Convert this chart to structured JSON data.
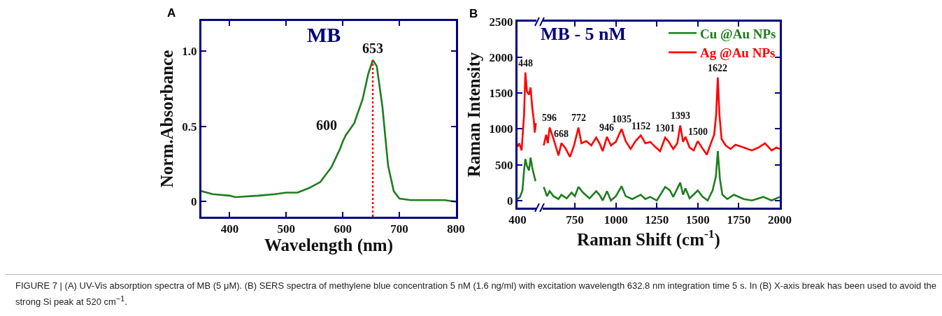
{
  "chart_data": [
    {
      "type": "line",
      "title": "MB",
      "xlabel": "Wavelength (nm)",
      "ylabel": "Norm.Absorbance",
      "xlim": [
        350,
        800
      ],
      "xticks": [
        400,
        500,
        600,
        700,
        800
      ],
      "ylim": [
        -0.1,
        1.2
      ],
      "yticks": [
        0.0,
        {
          "value": 0.5,
          "label": "0.5"
        },
        {
          "value": 1.0,
          "label": "1.0"
        }
      ],
      "grid": false,
      "legend": false,
      "marker": "none",
      "line_style": "solid",
      "x": [
        350,
        370,
        400,
        410,
        450,
        480,
        500,
        520,
        540,
        560,
        580,
        595,
        600,
        605,
        620,
        635,
        645,
        653,
        660,
        670,
        680,
        690,
        700,
        720,
        750,
        780,
        800
      ],
      "series": [
        {
          "color": "#1e7d1e",
          "values": [
            0.07,
            0.05,
            0.04,
            0.03,
            0.04,
            0.05,
            0.06,
            0.06,
            0.09,
            0.13,
            0.23,
            0.35,
            0.4,
            0.44,
            0.52,
            0.68,
            0.85,
            0.94,
            0.9,
            0.63,
            0.24,
            0.07,
            0.02,
            0.01,
            0.01,
            0.01,
            0.0
          ]
        }
      ],
      "ref_lines": [
        {
          "axis": "x",
          "value": 653,
          "color": "#ff0000",
          "line_style": "dotted"
        }
      ],
      "annotations": [
        "A",
        {
          "text": "653",
          "x": 653,
          "y": 0.94
        },
        {
          "text": "600",
          "x": 600,
          "y": 0.4
        },
        "FIGURE 7 | (A) UV-Vis absorption spectra of MB (5 μM). (B) SERS spectra of methylene blue concentration 5 nM (1.6 ng/ml) with excitation wavelength 632.8 nm integration time 5 s. In (B) X-axis break has been used to avoid the strong Si peak at 520 cm$^{−1}$."
      ]
    },
    {
      "type": "line",
      "title": "MB - 5 nM",
      "xlabel": "Raman Shift (cm$^{-1}$)",
      "ylabel": "Raman Intensity",
      "xlim": [
        400,
        2000
      ],
      "xticks": [
        400,
        750,
        1000,
        1250,
        1500,
        1750,
        2000
      ],
      "ylim": [
        -100,
        2500
      ],
      "yticks": [
        0,
        500,
        1000,
        1500,
        2000,
        2500
      ],
      "grid": false,
      "legend": "top right",
      "marker": "none",
      "line_style": "solid",
      "series": [
        {
          "name": "Cu @Au NPs",
          "color": "#1e7d1e",
          "x": [
            400,
            415,
            430,
            440,
            448,
            458,
            470,
            480,
            490,
            500,
            510,
            535,
            560,
            580,
            596,
            620,
            650,
            668,
            700,
            730,
            750,
            772,
            800,
            840,
            880,
            900,
            920,
            946,
            970,
            1000,
            1035,
            1060,
            1100,
            1152,
            1180,
            1210,
            1250,
            1301,
            1330,
            1350,
            1393,
            1410,
            1425,
            1450,
            1500,
            1530,
            1560,
            1590,
            1610,
            1622,
            1635,
            1650,
            1680,
            1720,
            1780,
            1830,
            1900,
            1950,
            2000
          ],
          "values": [
            20,
            50,
            140,
            420,
            580,
            480,
            420,
            600,
            460,
            360,
            270,
            null,
            190,
            60,
            130,
            60,
            20,
            80,
            30,
            110,
            60,
            190,
            110,
            30,
            130,
            80,
            0,
            130,
            0,
            60,
            200,
            60,
            20,
            80,
            20,
            50,
            0,
            190,
            140,
            50,
            250,
            80,
            170,
            30,
            140,
            50,
            0,
            140,
            330,
            690,
            300,
            80,
            20,
            80,
            20,
            0,
            50,
            0,
            50
          ]
        },
        {
          "name": "Ag @Au NPs",
          "color": "#ff0000",
          "x": [
            400,
            410,
            425,
            440,
            448,
            458,
            470,
            480,
            490,
            500,
            505,
            512,
            535,
            560,
            575,
            585,
            596,
            620,
            650,
            668,
            690,
            720,
            745,
            772,
            790,
            820,
            850,
            880,
            900,
            920,
            946,
            970,
            1000,
            1035,
            1060,
            1090,
            1120,
            1152,
            1180,
            1210,
            1240,
            1270,
            1301,
            1320,
            1350,
            1375,
            1393,
            1410,
            1425,
            1450,
            1475,
            1500,
            1525,
            1555,
            1580,
            1600,
            1612,
            1622,
            1632,
            1645,
            1670,
            1700,
            1730,
            1780,
            1830,
            1870,
            1910,
            1950,
            1980,
            2000
          ],
          "values": [
            750,
            800,
            700,
            1200,
            1790,
            1520,
            1480,
            1580,
            1300,
            1110,
            950,
            1080,
            null,
            770,
            920,
            800,
            1020,
            860,
            630,
            800,
            740,
            610,
            770,
            1020,
            800,
            830,
            770,
            880,
            800,
            690,
            890,
            770,
            820,
            1000,
            830,
            720,
            830,
            910,
            800,
            820,
            750,
            690,
            880,
            830,
            720,
            800,
            1050,
            820,
            890,
            740,
            700,
            830,
            740,
            640,
            800,
            920,
            1200,
            1720,
            1200,
            860,
            770,
            720,
            780,
            740,
            700,
            740,
            800,
            700,
            740,
            720
          ]
        }
      ],
      "annotations": [
        "B",
        {
          "text": "448",
          "x": 448,
          "y": 1790
        },
        {
          "text": "596",
          "x": 596,
          "y": 1020
        },
        {
          "text": "668",
          "x": 668,
          "y": 800
        },
        {
          "text": "772",
          "x": 772,
          "y": 1020
        },
        {
          "text": "946",
          "x": 946,
          "y": 890
        },
        {
          "text": "1035",
          "x": 1035,
          "y": 1000
        },
        {
          "text": "1152",
          "x": 1152,
          "y": 910
        },
        {
          "text": "1301",
          "x": 1301,
          "y": 880
        },
        {
          "text": "1393",
          "x": 1393,
          "y": 1050
        },
        {
          "text": "1500",
          "x": 1500,
          "y": 830
        },
        {
          "text": "1622",
          "x": 1622,
          "y": 1720
        }
      ]
    }
  ]
}
